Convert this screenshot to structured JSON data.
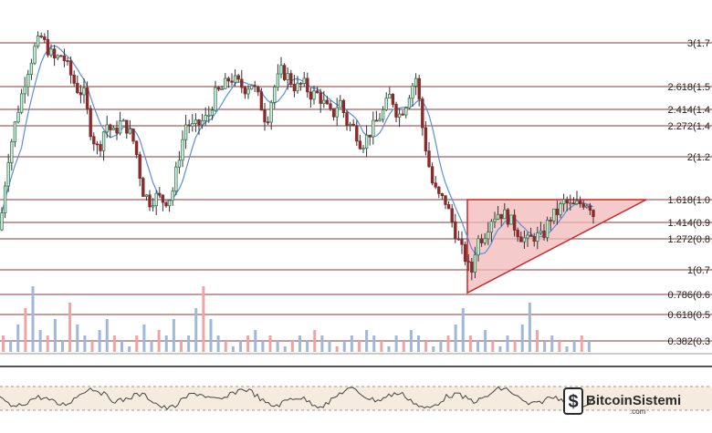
{
  "chart_data": {
    "type": "candlestick",
    "panes": [
      "price",
      "volume",
      "oscillator"
    ],
    "grid": false,
    "fib_levels": [
      {
        "ratio": 3,
        "label": "3(1.7"
      },
      {
        "ratio": 2.618,
        "label": "2.618(1.5"
      },
      {
        "ratio": 2.414,
        "label": "2.414(1.4"
      },
      {
        "ratio": 2.272,
        "label": "2.272(1.4"
      },
      {
        "ratio": 2,
        "label": "2(1.2"
      },
      {
        "ratio": 1.618,
        "label": "1.618(1.0"
      },
      {
        "ratio": 1.414,
        "label": "1.414(0.9"
      },
      {
        "ratio": 1.272,
        "label": "1.272(0.8"
      },
      {
        "ratio": 1,
        "label": "1(0.7"
      },
      {
        "ratio": 0.786,
        "label": "0.786(0.6"
      },
      {
        "ratio": 0.618,
        "label": "0.618(0.5"
      },
      {
        "ratio": 0.382,
        "label": "0.382(0.3"
      }
    ],
    "price_path": [
      [
        0,
        1.35
      ],
      [
        8,
        1.95
      ],
      [
        18,
        2.35
      ],
      [
        28,
        2.7
      ],
      [
        38,
        2.95
      ],
      [
        45,
        3.05
      ],
      [
        52,
        2.95
      ],
      [
        60,
        2.85
      ],
      [
        68,
        2.9
      ],
      [
        76,
        2.75
      ],
      [
        84,
        2.6
      ],
      [
        92,
        2.55
      ],
      [
        100,
        2.2
      ],
      [
        108,
        2.05
      ],
      [
        116,
        2.3
      ],
      [
        124,
        2.2
      ],
      [
        132,
        2.3
      ],
      [
        140,
        2.25
      ],
      [
        148,
        2.1
      ],
      [
        156,
        1.7
      ],
      [
        164,
        1.6
      ],
      [
        172,
        1.65
      ],
      [
        180,
        1.6
      ],
      [
        188,
        1.65
      ],
      [
        196,
        2.0
      ],
      [
        204,
        2.3
      ],
      [
        212,
        2.25
      ],
      [
        220,
        2.3
      ],
      [
        228,
        2.35
      ],
      [
        236,
        2.55
      ],
      [
        244,
        2.6
      ],
      [
        252,
        2.7
      ],
      [
        260,
        2.65
      ],
      [
        268,
        2.6
      ],
      [
        276,
        2.65
      ],
      [
        284,
        2.5
      ],
      [
        292,
        2.3
      ],
      [
        300,
        2.6
      ],
      [
        308,
        2.75
      ],
      [
        316,
        2.7
      ],
      [
        324,
        2.6
      ],
      [
        332,
        2.65
      ],
      [
        340,
        2.55
      ],
      [
        348,
        2.55
      ],
      [
        356,
        2.45
      ],
      [
        364,
        2.35
      ],
      [
        372,
        2.5
      ],
      [
        380,
        2.3
      ],
      [
        388,
        2.25
      ],
      [
        396,
        2.1
      ],
      [
        404,
        2.2
      ],
      [
        412,
        2.3
      ],
      [
        420,
        2.4
      ],
      [
        428,
        2.55
      ],
      [
        436,
        2.35
      ],
      [
        444,
        2.45
      ],
      [
        450,
        2.6
      ],
      [
        456,
        2.7
      ],
      [
        462,
        2.3
      ],
      [
        468,
        2.0
      ],
      [
        474,
        1.75
      ],
      [
        480,
        1.65
      ],
      [
        488,
        1.6
      ],
      [
        496,
        1.4
      ],
      [
        504,
        1.2
      ],
      [
        510,
        1.1
      ],
      [
        516,
        0.95
      ],
      [
        522,
        1.25
      ],
      [
        530,
        1.3
      ],
      [
        538,
        1.45
      ],
      [
        546,
        1.5
      ],
      [
        554,
        1.48
      ],
      [
        562,
        1.4
      ],
      [
        570,
        1.3
      ],
      [
        578,
        1.25
      ],
      [
        586,
        1.3
      ],
      [
        594,
        1.28
      ],
      [
        602,
        1.45
      ],
      [
        610,
        1.5
      ],
      [
        618,
        1.6
      ],
      [
        626,
        1.55
      ],
      [
        634,
        1.58
      ],
      [
        642,
        1.6
      ],
      [
        648,
        1.55
      ],
      [
        652,
        1.42
      ]
    ],
    "triangle": {
      "apex_x": 708,
      "top": 1.618,
      "base_left": 0.8,
      "left_x": 512
    },
    "volume_bars": [
      3,
      2,
      5,
      8,
      12,
      4,
      3,
      6,
      2,
      9,
      5,
      3,
      2,
      4,
      6,
      3,
      2,
      1,
      3,
      5,
      2,
      4,
      3,
      6,
      2,
      3,
      8,
      12,
      6,
      3,
      2,
      1,
      2,
      3,
      4,
      2,
      3,
      2,
      1,
      2,
      3,
      2,
      4,
      3,
      2,
      1,
      2,
      3,
      2,
      4,
      3,
      2,
      1,
      3,
      2,
      4,
      3,
      2,
      1,
      2,
      3,
      5,
      8,
      3,
      2,
      4,
      2,
      1,
      3,
      2,
      5,
      9,
      4,
      2,
      3,
      2,
      1,
      2,
      3,
      2
    ],
    "oscillator_band": [
      0.3,
      0.7
    ]
  },
  "branding": {
    "logo_text": "BitcoinSistemi",
    "logo_sub": ".com",
    "logo_icon": "bitcoin-logo-icon"
  },
  "colors": {
    "up": "#2e7d52",
    "down": "#8a2a2a",
    "fib_line": "#8b3a3a",
    "triangle_fill": "#f2b8b8",
    "triangle_stroke": "#c62828",
    "ma": "#5b8fd6",
    "vol_up": "#9fb7d8",
    "vol_down": "#f0a3a3"
  }
}
